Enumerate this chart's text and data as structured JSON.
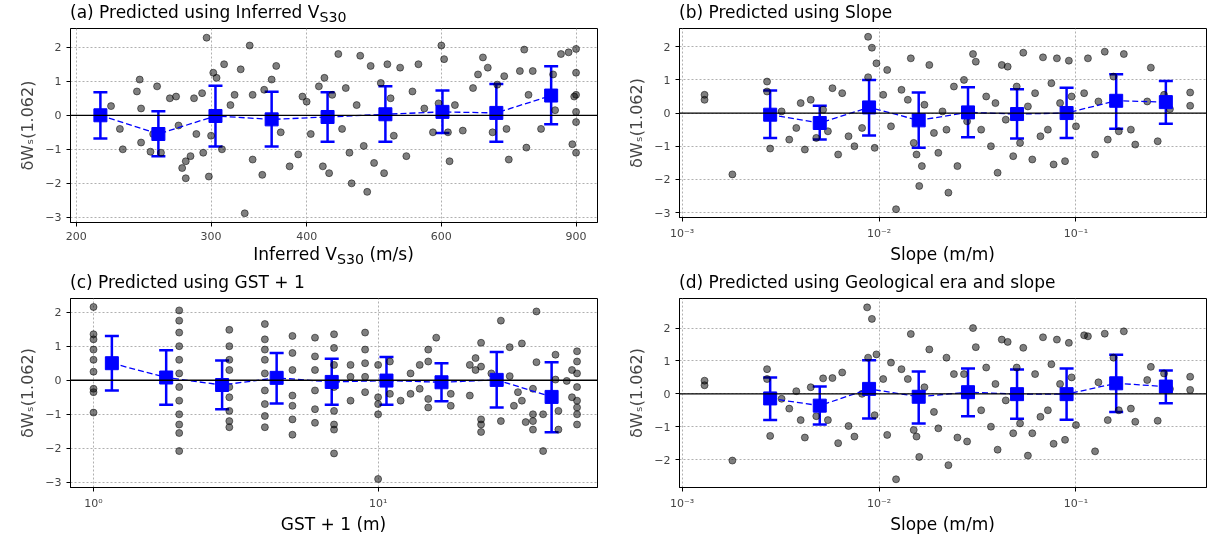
{
  "chart_data": [
    {
      "type": "scatter",
      "title": "(a) Predicted using Inferred V$_{S30}$",
      "xlabel": "Inferred V$_{S30}$ (m/s)",
      "ylabel": "δWₛ(1.062)",
      "log": "x",
      "xlim": [
        196.5,
        960
      ],
      "ylim": [
        -3.15,
        2.55
      ],
      "xticks": [
        200,
        300,
        400,
        600,
        900
      ],
      "yticks": [
        -3,
        -2,
        -1,
        0,
        1,
        2
      ],
      "grid": true,
      "ref_lines": [
        {
          "axis": "y",
          "value": 0,
          "color": "#000000"
        }
      ],
      "series": [
        {
          "type": "scatter",
          "color": "#000000",
          "marker": "circle",
          "x": [
            222,
            228,
            230,
            240,
            242,
            243,
            243,
            250,
            252,
            255,
            258,
            265,
            270,
            272,
            275,
            278,
            278,
            282,
            285,
            287,
            292,
            293,
            296,
            298,
            300,
            302,
            305,
            310,
            312,
            318,
            322,
            328,
            332,
            337,
            340,
            340,
            350,
            352,
            360,
            365,
            370,
            380,
            390,
            395,
            400,
            405,
            415,
            420,
            422,
            428,
            432,
            440,
            445,
            450,
            455,
            458,
            465,
            470,
            475,
            480,
            485,
            490,
            500,
            505,
            510,
            515,
            520,
            530,
            540,
            550,
            560,
            570,
            585,
            595,
            600,
            605,
            612,
            615,
            625,
            640,
            660,
            670,
            680,
            690,
            700,
            710,
            725,
            730,
            735,
            760,
            770,
            775,
            780,
            790,
            810,
            840,
            845,
            860,
            880,
            890,
            895,
            900,
            900,
            900,
            900,
            900,
            900
          ],
          "values": [
            0.27,
            -0.4,
            -1.0,
            0.7,
            1.05,
            0.2,
            -0.8,
            -1.07,
            -0.55,
            0.85,
            -1.1,
            0.5,
            0.55,
            -0.3,
            -1.55,
            -1.35,
            -1.85,
            -1.2,
            0.5,
            -0.55,
            0.65,
            -1.1,
            2.28,
            -1.8,
            -0.6,
            1.25,
            1.1,
            -1.0,
            1.5,
            0.3,
            0.6,
            1.35,
            -2.88,
            2.05,
            -1.3,
            0.6,
            -1.75,
            0.75,
            1.05,
            1.45,
            -0.5,
            -1.5,
            -1.15,
            0.55,
            0.4,
            -0.55,
            0.85,
            -1.5,
            1.1,
            -1.7,
            0.6,
            1.8,
            -0.4,
            0.8,
            -1.1,
            -2.0,
            0.3,
            1.75,
            -0.9,
            -2.25,
            1.45,
            -1.4,
            0.95,
            -1.7,
            1.5,
            0.5,
            -0.6,
            1.4,
            -1.2,
            0.7,
            1.5,
            0.2,
            -0.5,
            0.35,
            2.05,
            1.65,
            -0.5,
            -1.35,
            0.3,
            -0.45,
            0.8,
            1.2,
            1.7,
            1.4,
            -0.5,
            0.9,
            1.15,
            -0.4,
            -1.3,
            1.3,
            1.93,
            -0.95,
            0.6,
            1.3,
            -0.4,
            1.2,
            0.15,
            1.8,
            1.85,
            -0.85,
            0.55,
            1.95,
            -1.1,
            0.6,
            -0.2,
            1.25,
            0.1
          ]
        },
        {
          "type": "line",
          "color": "#0000ff",
          "marker": "square",
          "line_style": "dashed",
          "x": [
            215,
            256,
            304,
            360,
            426,
            507,
            602,
            708,
            835
          ],
          "values": [
            0.0,
            -0.55,
            -0.02,
            -0.12,
            -0.05,
            0.03,
            0.1,
            0.07,
            0.58
          ],
          "errors": [
            [
              -0.68,
              0.68
            ],
            [
              -1.2,
              0.12
            ],
            [
              -0.92,
              0.87
            ],
            [
              -0.92,
              0.69
            ],
            [
              -0.78,
              0.68
            ],
            [
              -0.78,
              0.85
            ],
            [
              -0.52,
              0.73
            ],
            [
              -0.78,
              0.92
            ],
            [
              -0.26,
              1.44
            ]
          ]
        }
      ]
    },
    {
      "type": "scatter",
      "title": "(b) Predicted using Slope",
      "xlabel": "Slope (m/m)",
      "ylabel": "δWₛ(1.062)",
      "log": "x",
      "xlim": [
        0.00097,
        0.46
      ],
      "ylim": [
        -3.15,
        2.55
      ],
      "xticks": [
        {
          "value": 0.001,
          "label": "10⁻³"
        },
        {
          "value": 0.01,
          "label": "10⁻²"
        },
        {
          "value": 0.1,
          "label": "10⁻¹"
        }
      ],
      "yticks": [
        -3,
        -2,
        -1,
        0,
        1,
        2
      ],
      "grid": true,
      "ref_lines": [
        {
          "axis": "y",
          "value": 0,
          "color": "#000000"
        }
      ],
      "series": [
        {
          "type": "scatter",
          "color": "#000000",
          "marker": "circle",
          "x": [
            0.0013,
            0.0013,
            0.0018,
            0.0027,
            0.0027,
            0.0028,
            0.0032,
            0.0035,
            0.0038,
            0.004,
            0.0042,
            0.0045,
            0.0048,
            0.0052,
            0.0055,
            0.0058,
            0.0062,
            0.0065,
            0.007,
            0.0075,
            0.0082,
            0.0088,
            0.0088,
            0.0092,
            0.0095,
            0.0097,
            0.0105,
            0.011,
            0.0115,
            0.0122,
            0.013,
            0.014,
            0.0145,
            0.015,
            0.0155,
            0.016,
            0.0165,
            0.017,
            0.018,
            0.019,
            0.02,
            0.021,
            0.022,
            0.0225,
            0.024,
            0.025,
            0.027,
            0.028,
            0.03,
            0.031,
            0.033,
            0.035,
            0.037,
            0.039,
            0.04,
            0.042,
            0.044,
            0.045,
            0.048,
            0.05,
            0.052,
            0.054,
            0.057,
            0.06,
            0.062,
            0.066,
            0.068,
            0.072,
            0.075,
            0.077,
            0.08,
            0.083,
            0.088,
            0.092,
            0.095,
            0.1,
            0.11,
            0.115,
            0.125,
            0.13,
            0.14,
            0.145,
            0.155,
            0.165,
            0.175,
            0.19,
            0.2,
            0.23,
            0.24,
            0.26,
            0.28,
            0.3,
            0.38,
            0.38
          ],
          "values": [
            0.55,
            0.4,
            -1.85,
            0.95,
            0.65,
            -1.07,
            0.05,
            -0.8,
            -0.45,
            0.3,
            -1.1,
            0.4,
            -0.75,
            0.1,
            -0.55,
            0.75,
            -1.25,
            0.6,
            -0.7,
            -1.0,
            -0.45,
            2.3,
            1.08,
            1.97,
            -1.05,
            1.5,
            0.55,
            1.3,
            -0.4,
            -2.9,
            0.7,
            0.4,
            1.65,
            -0.9,
            -1.25,
            -2.2,
            -1.6,
            0.25,
            1.45,
            -0.6,
            -1.2,
            0.05,
            -0.5,
            -2.4,
            0.8,
            -1.6,
            1.0,
            -0.25,
            1.78,
            1.55,
            -0.5,
            0.5,
            -1.0,
            0.3,
            -1.8,
            1.45,
            -0.2,
            1.4,
            -1.3,
            0.8,
            -0.9,
            1.82,
            0.2,
            -1.4,
            0.6,
            -0.7,
            1.68,
            -0.5,
            0.9,
            -1.55,
            1.65,
            0.3,
            -1.45,
            1.58,
            0.5,
            -0.4,
            0.6,
            1.65,
            -1.25,
            0.35,
            1.85,
            -0.8,
            1.1,
            -0.55,
            1.78,
            -0.5,
            -0.95,
            0.35,
            1.37,
            -0.85,
            0.55,
            0.12,
            0.62,
            0.22
          ]
        },
        {
          "type": "line",
          "color": "#0000ff",
          "marker": "square",
          "line_style": "dashed",
          "x": [
            0.0028,
            0.005,
            0.0089,
            0.0159,
            0.0283,
            0.0502,
            0.0896,
            0.16,
            0.286
          ],
          "values": [
            -0.05,
            -0.3,
            0.17,
            -0.22,
            0.02,
            -0.03,
            0.0,
            0.37,
            0.33
          ],
          "errors": [
            [
              -0.75,
              0.68
            ],
            [
              -0.8,
              0.22
            ],
            [
              -0.68,
              1.0
            ],
            [
              -1.05,
              0.62
            ],
            [
              -0.73,
              0.78
            ],
            [
              -0.77,
              0.72
            ],
            [
              -0.75,
              0.76
            ],
            [
              -0.47,
              1.17
            ],
            [
              -0.32,
              0.97
            ]
          ]
        }
      ]
    },
    {
      "type": "scatter",
      "title": "(c) Predicted using GST + 1",
      "xlabel": "GST + 1 (m)",
      "ylabel": "δWₛ(1.062)",
      "log": "x",
      "xlim": [
        0.83,
        59
      ],
      "ylim": [
        -3.15,
        2.4
      ],
      "xticks": [
        {
          "value": 1,
          "label": "10⁰"
        },
        {
          "value": 10,
          "label": "10¹"
        }
      ],
      "yticks": [
        -3,
        -2,
        -1,
        0,
        1,
        2
      ],
      "grid": true,
      "ref_lines": [
        {
          "axis": "y",
          "value": 0,
          "color": "#000000"
        }
      ],
      "series": [
        {
          "type": "scatter",
          "color": "#000000",
          "marker": "circle",
          "x": [
            1,
            1,
            1,
            1,
            1,
            1,
            1,
            1,
            1,
            2,
            2,
            2,
            2,
            2,
            2,
            2,
            2,
            2,
            2,
            2,
            2,
            3,
            3,
            3,
            3,
            3,
            3,
            3,
            3,
            3,
            4,
            4,
            4,
            4,
            4,
            4,
            4,
            4,
            4,
            5,
            5,
            5,
            5,
            5,
            5,
            5,
            6,
            6,
            6,
            6,
            6,
            6,
            7,
            7,
            7,
            7,
            7,
            7,
            7,
            7,
            8,
            8,
            8,
            9,
            9,
            9,
            9,
            9,
            10,
            10,
            10,
            10,
            10,
            11,
            11,
            12,
            13,
            13,
            14,
            14,
            15,
            15,
            15,
            15,
            16,
            18,
            18,
            21,
            21,
            22,
            22,
            23,
            23,
            23,
            23,
            23,
            25,
            27,
            27,
            29,
            29,
            30,
            31,
            32,
            32,
            33,
            35,
            35,
            35,
            35,
            36,
            36,
            38,
            38,
            42,
            42,
            43,
            43,
            46,
            48,
            48,
            50,
            50,
            50,
            50,
            50,
            50,
            50,
            50
          ],
          "values": [
            2.15,
            1.35,
            1.2,
            0.9,
            0.6,
            0.25,
            -0.25,
            -0.35,
            -0.95,
            2.05,
            1.75,
            1.4,
            1.0,
            0.6,
            0.2,
            -0.2,
            -0.6,
            -1.0,
            -1.3,
            -1.55,
            -2.08,
            1.48,
            1.0,
            0.6,
            0.3,
            -0.2,
            -0.5,
            -0.9,
            -1.2,
            -1.38,
            1.65,
            1.2,
            0.9,
            0.6,
            0.2,
            -0.3,
            -0.7,
            -1.05,
            -1.38,
            1.3,
            0.8,
            0.3,
            -0.45,
            -0.75,
            -1.15,
            -1.6,
            1.25,
            0.7,
            0.3,
            -0.3,
            -0.85,
            -1.25,
            1.35,
            0.95,
            0.45,
            -0.2,
            -0.9,
            -1.3,
            -1.45,
            -2.15,
            0.45,
            0.1,
            -0.6,
            1.4,
            0.9,
            0.5,
            0.1,
            -0.35,
            0.45,
            -0.5,
            -0.7,
            -1.0,
            -2.9,
            0.55,
            -0.4,
            -0.6,
            0.2,
            -0.4,
            0.45,
            -0.25,
            0.9,
            0.55,
            -0.55,
            -0.8,
            1.25,
            -0.4,
            -0.75,
            0.45,
            -0.45,
            0.65,
            0.3,
            1.1,
            0.4,
            -1.15,
            -1.3,
            -1.52,
            0.2,
            1.75,
            -1.2,
            0.97,
            0.12,
            -0.75,
            -0.35,
            1.08,
            -0.6,
            -1.23,
            -0.25,
            -1.0,
            -1.2,
            -1.45,
            2.02,
            0.53,
            -2.08,
            -1.0,
            0.75,
            0.02,
            -0.9,
            -1.45,
            -0.02,
            0.3,
            -0.5,
            0.85,
            0.55,
            0.2,
            -0.2,
            -0.6,
            -0.8,
            -1.0,
            -1.3
          ]
        },
        {
          "type": "line",
          "color": "#0000ff",
          "marker": "square",
          "line_style": "dashed",
          "x": [
            1.16,
            1.8,
            2.83,
            4.4,
            6.87,
            10.7,
            16.7,
            26.1,
            40.7
          ],
          "values": [
            0.5,
            0.08,
            -0.14,
            0.07,
            -0.05,
            -0.01,
            -0.06,
            0.01,
            -0.49
          ],
          "errors": [
            [
              -0.3,
              1.3
            ],
            [
              -0.72,
              0.88
            ],
            [
              -0.85,
              0.58
            ],
            [
              -0.68,
              0.8
            ],
            [
              -0.72,
              0.63
            ],
            [
              -0.72,
              0.68
            ],
            [
              -0.62,
              0.5
            ],
            [
              -0.8,
              0.83
            ],
            [
              -1.53,
              0.53
            ]
          ]
        }
      ]
    },
    {
      "type": "scatter",
      "title": "(d) Predicted using Geological era and slope",
      "xlabel": "Slope (m/m)",
      "ylabel": "δWₛ(1.062)",
      "log": "x",
      "xlim": [
        0.00097,
        0.46
      ],
      "ylim": [
        -2.85,
        2.9
      ],
      "xticks": [
        {
          "value": 0.001,
          "label": "10⁻³"
        },
        {
          "value": 0.01,
          "label": "10⁻²"
        },
        {
          "value": 0.1,
          "label": "10⁻¹"
        }
      ],
      "yticks": [
        -2,
        -1,
        0,
        1,
        2
      ],
      "grid": true,
      "ref_lines": [
        {
          "axis": "y",
          "value": 0,
          "color": "#000000"
        }
      ],
      "series": [
        {
          "type": "scatter",
          "color": "#000000",
          "marker": "circle",
          "x": [
            0.0013,
            0.0013,
            0.0018,
            0.0027,
            0.0027,
            0.0028,
            0.0032,
            0.0035,
            0.0038,
            0.004,
            0.0042,
            0.0045,
            0.0048,
            0.0052,
            0.0055,
            0.0058,
            0.0062,
            0.0065,
            0.007,
            0.0075,
            0.0082,
            0.0087,
            0.0088,
            0.0092,
            0.0095,
            0.0097,
            0.0105,
            0.011,
            0.0115,
            0.0122,
            0.013,
            0.014,
            0.0145,
            0.015,
            0.0155,
            0.016,
            0.017,
            0.018,
            0.019,
            0.02,
            0.022,
            0.0225,
            0.024,
            0.025,
            0.027,
            0.028,
            0.03,
            0.031,
            0.033,
            0.035,
            0.037,
            0.039,
            0.04,
            0.042,
            0.044,
            0.045,
            0.048,
            0.05,
            0.052,
            0.054,
            0.057,
            0.06,
            0.062,
            0.066,
            0.068,
            0.072,
            0.075,
            0.077,
            0.08,
            0.083,
            0.088,
            0.092,
            0.095,
            0.1,
            0.11,
            0.115,
            0.125,
            0.13,
            0.14,
            0.145,
            0.155,
            0.165,
            0.175,
            0.19,
            0.2,
            0.23,
            0.24,
            0.26,
            0.28,
            0.3,
            0.38,
            0.38
          ],
          "values": [
            0.4,
            0.26,
            -2.03,
            0.75,
            0.45,
            -1.28,
            -0.15,
            -0.45,
            0.08,
            -0.8,
            -1.33,
            0.2,
            -0.68,
            0.47,
            -0.8,
            0.48,
            -1.5,
            0.65,
            -0.98,
            -1.3,
            0.0,
            2.63,
            1.1,
            2.28,
            -0.65,
            1.2,
            0.45,
            -1.25,
            0.95,
            -2.6,
            0.75,
            0.45,
            1.82,
            -1.1,
            -1.3,
            -1.92,
            0.2,
            1.35,
            -0.55,
            -1.05,
            1.1,
            -2.17,
            0.6,
            -1.33,
            0.6,
            -1.45,
            2.0,
            1.42,
            -0.5,
            0.8,
            -1.0,
            0.3,
            -1.7,
            1.65,
            -0.2,
            1.58,
            -1.2,
            0.8,
            -0.9,
            1.4,
            -1.88,
            -1.2,
            0.6,
            -0.7,
            1.72,
            -0.5,
            0.9,
            -1.52,
            1.65,
            0.3,
            -1.4,
            1.55,
            0.5,
            -0.95,
            1.78,
            1.75,
            -1.75,
            0.35,
            1.83,
            -0.8,
            1.1,
            -0.5,
            1.9,
            -0.45,
            -0.85,
            0.42,
            0.82,
            -0.82,
            0.62,
            0.15,
            0.52,
            0.12
          ]
        },
        {
          "type": "line",
          "color": "#0000ff",
          "marker": "square",
          "line_style": "dashed",
          "x": [
            0.0028,
            0.005,
            0.0089,
            0.0159,
            0.0283,
            0.0502,
            0.0896,
            0.16,
            0.286
          ],
          "values": [
            -0.14,
            -0.36,
            0.15,
            -0.09,
            0.05,
            -0.01,
            -0.01,
            0.32,
            0.22
          ],
          "errors": [
            [
              -0.8,
              0.5
            ],
            [
              -0.93,
              0.22
            ],
            [
              -0.75,
              1.02
            ],
            [
              -0.9,
              0.68
            ],
            [
              -0.68,
              0.77
            ],
            [
              -0.76,
              0.74
            ],
            [
              -0.79,
              0.77
            ],
            [
              -0.55,
              1.19
            ],
            [
              -0.29,
              0.71
            ]
          ]
        }
      ]
    }
  ]
}
